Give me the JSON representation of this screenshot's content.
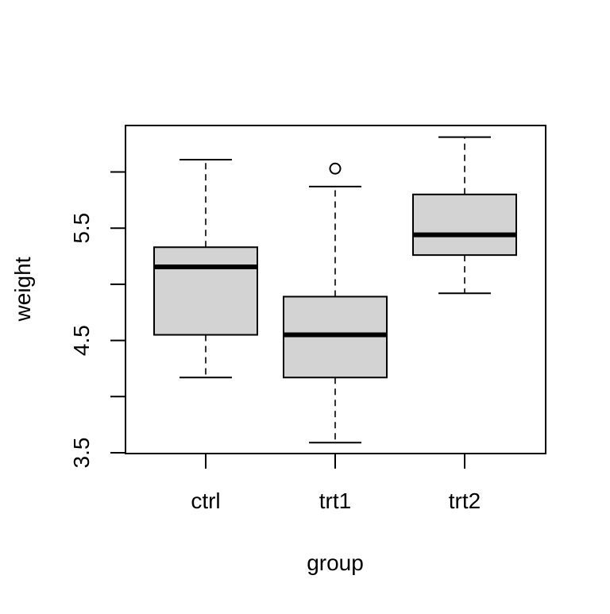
{
  "chart_data": {
    "type": "boxplot",
    "title": "",
    "xlabel": "group",
    "ylabel": "weight",
    "categories": [
      "ctrl",
      "trt1",
      "trt2"
    ],
    "boxes": [
      {
        "category": "ctrl",
        "whisker_low": 4.17,
        "q1": 4.55,
        "median": 5.155,
        "q3": 5.33,
        "whisker_high": 6.11,
        "outliers": []
      },
      {
        "category": "trt1",
        "whisker_low": 3.59,
        "q1": 4.17,
        "median": 4.55,
        "q3": 4.89,
        "whisker_high": 5.87,
        "outliers": [
          6.03
        ]
      },
      {
        "category": "trt2",
        "whisker_low": 4.92,
        "q1": 5.26,
        "median": 5.44,
        "q3": 5.8,
        "whisker_high": 6.31,
        "outliers": []
      }
    ],
    "ylim": [
      3.5,
      6.4
    ],
    "yticks": [
      3.5,
      4.0,
      4.5,
      5.0,
      5.5,
      6.0
    ],
    "ytick_labels": [
      "3.5",
      "",
      "4.5",
      "",
      "5.5",
      ""
    ],
    "grid": false,
    "colors": {
      "box_fill": "#d3d3d3",
      "stroke": "#000000"
    }
  }
}
